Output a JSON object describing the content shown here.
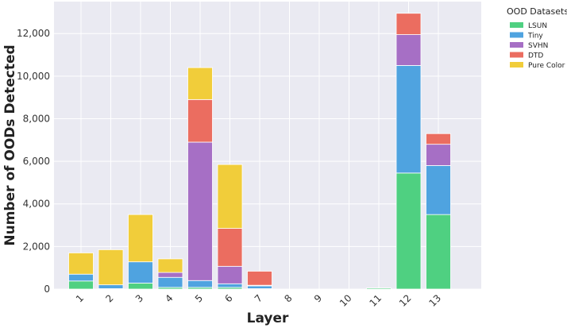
{
  "chart_data": {
    "type": "bar",
    "stacked": true,
    "title": "",
    "xlabel": "Layer",
    "ylabel": "Number of OODs Detected",
    "categories": [
      "1",
      "2",
      "3",
      "4",
      "5",
      "6",
      "7",
      "8",
      "9",
      "10",
      "11",
      "12",
      "13"
    ],
    "ylim": [
      0,
      13500
    ],
    "yticks": [
      0,
      2000,
      4000,
      6000,
      8000,
      10000,
      12000
    ],
    "ytick_labels": [
      "0",
      "2,000",
      "4,000",
      "6,000",
      "8,000",
      "10,000",
      "12,000"
    ],
    "grid": true,
    "legend_position": "outside-right",
    "legend_title": "OOD Datasets",
    "series": [
      {
        "name": "LSUN",
        "color": "#4fd081",
        "values": [
          380,
          20,
          280,
          80,
          80,
          80,
          20,
          0,
          0,
          0,
          50,
          5450,
          3500
        ]
      },
      {
        "name": "Tiny",
        "color": "#4fa3e0",
        "values": [
          320,
          180,
          1000,
          470,
          320,
          170,
          130,
          0,
          0,
          0,
          0,
          5050,
          2300
        ]
      },
      {
        "name": "SVHN",
        "color": "#a66fc5",
        "values": [
          0,
          0,
          0,
          230,
          6500,
          820,
          30,
          0,
          0,
          0,
          0,
          1450,
          1000
        ]
      },
      {
        "name": "DTD",
        "color": "#eb6d60",
        "values": [
          0,
          0,
          0,
          0,
          2000,
          1780,
          660,
          0,
          0,
          0,
          0,
          1000,
          500
        ]
      },
      {
        "name": "Pure Color",
        "color": "#f1cd3a",
        "values": [
          1000,
          1650,
          2220,
          640,
          1500,
          3000,
          0,
          0,
          0,
          0,
          0,
          0,
          0
        ]
      }
    ]
  }
}
